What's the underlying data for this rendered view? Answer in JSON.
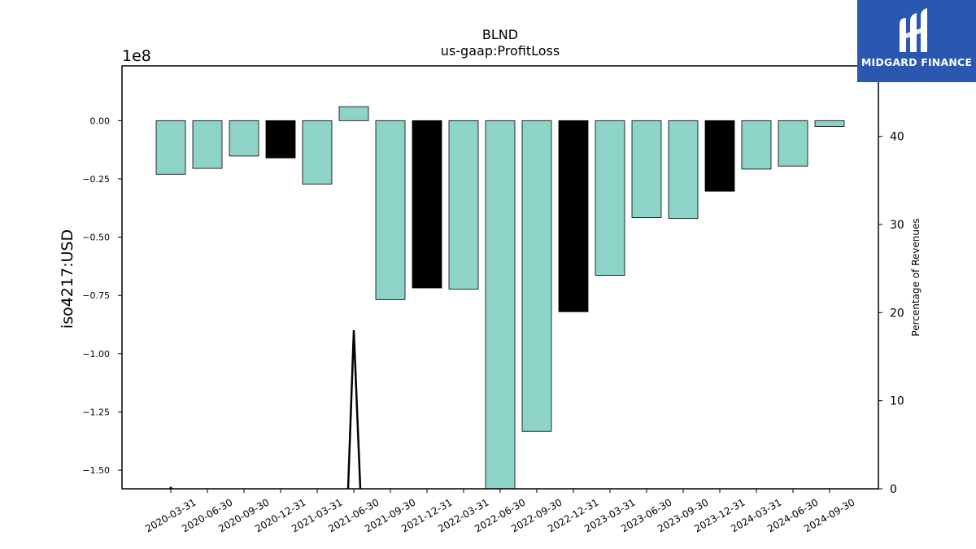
{
  "chart_data": {
    "type": "bar",
    "title": "BLND",
    "subtitle": "us-gaap:ProfitLoss",
    "ylabel": "iso4217:USD",
    "y2label": "Percentage of Revenues",
    "yscale_label": "1e8",
    "ylim": [
      -1.58,
      0.235
    ],
    "y2lim": [
      0,
      48
    ],
    "y_ticks": [
      "0.00",
      "−0.25",
      "−0.50",
      "−0.75",
      "−1.00",
      "−1.25",
      "−1.50"
    ],
    "y_tick_values": [
      0,
      -0.25,
      -0.5,
      -0.75,
      -1.0,
      -1.25,
      -1.5
    ],
    "y2_ticks": [
      "0",
      "10",
      "20",
      "30",
      "40"
    ],
    "y2_tick_values": [
      0,
      10,
      20,
      30,
      40
    ],
    "categories": [
      "2020-03-31",
      "2020-06-30",
      "2020-09-30",
      "2020-12-31",
      "2021-03-31",
      "2021-06-30",
      "2021-09-30",
      "2021-12-31",
      "2022-03-31",
      "2022-06-30",
      "2022-09-30",
      "2022-12-31",
      "2023-03-31",
      "2023-06-30",
      "2023-09-30",
      "2023-12-31",
      "2024-03-31",
      "2024-06-30",
      "2024-09-30"
    ],
    "values": [
      -0.23,
      -0.205,
      -0.152,
      -0.16,
      -0.272,
      0.06,
      -0.768,
      -0.718,
      -0.723,
      -1.6,
      -1.333,
      -0.82,
      -0.664,
      -0.416,
      -0.42,
      -0.303,
      -0.208,
      -0.195,
      -0.025
    ],
    "bar_colors": [
      "#8dd3c7",
      "#8dd3c7",
      "#8dd3c7",
      "#000000",
      "#8dd3c7",
      "#8dd3c7",
      "#8dd3c7",
      "#000000",
      "#8dd3c7",
      "#8dd3c7",
      "#8dd3c7",
      "#000000",
      "#8dd3c7",
      "#8dd3c7",
      "#8dd3c7",
      "#000000",
      "#8dd3c7",
      "#8dd3c7",
      "#8dd3c7"
    ],
    "series_line": {
      "axis": "right",
      "color": "#000000",
      "points": [
        {
          "x": "2021-03-31",
          "y": 0
        },
        {
          "x": "2021-06-30",
          "y": 18.0
        },
        {
          "x": "2021-09-30",
          "y": 0
        }
      ]
    },
    "grid": false,
    "legend": "none"
  },
  "logo": {
    "text": "MIDGARD FINANCE",
    "background": "#2a57b0"
  }
}
